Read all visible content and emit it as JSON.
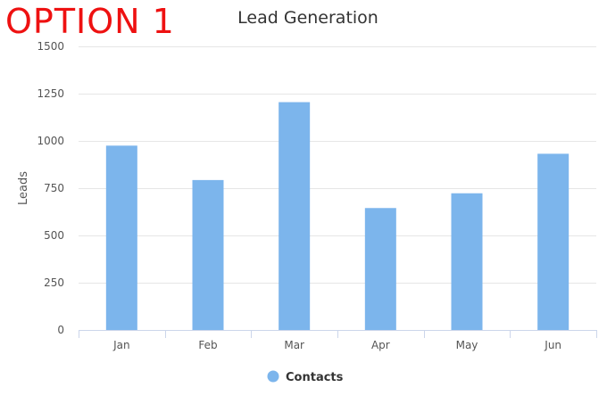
{
  "header": {
    "badge_text": "OPTION 1",
    "badge_color": "#ee1111"
  },
  "chart_data": {
    "type": "bar",
    "title": "Lead Generation",
    "xlabel": "",
    "ylabel": "Leads",
    "categories": [
      "Jan",
      "Feb",
      "Mar",
      "Apr",
      "May",
      "Jun"
    ],
    "series": [
      {
        "name": "Contacts",
        "values": [
          975,
          793,
          1205,
          645,
          723,
          932
        ],
        "color": "#7cb5ec"
      }
    ],
    "ylim": [
      0,
      1500
    ],
    "yticks": [
      "0",
      "250",
      "500",
      "750",
      "1000",
      "1250",
      "1500"
    ],
    "grid": true,
    "legend_position": "bottom-center"
  }
}
